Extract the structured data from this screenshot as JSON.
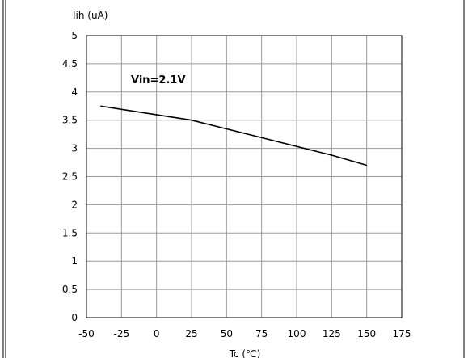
{
  "chart_data": {
    "type": "line",
    "ylabel": "Iih (uA)",
    "xlabel": "Tc (℃)",
    "annotation": "Vin=2.1V",
    "xlim": [
      -50,
      175
    ],
    "ylim": [
      0,
      5
    ],
    "x_ticks": [
      "-50",
      "-25",
      "0",
      "25",
      "50",
      "75",
      "100",
      "125",
      "150",
      "175"
    ],
    "y_ticks": [
      "0",
      "0.5",
      "1",
      "1.5",
      "2",
      "2.5",
      "3",
      "3.5",
      "4",
      "4.5",
      "5"
    ],
    "grid": true,
    "series": [
      {
        "x": [
          -40,
          25,
          125,
          150
        ],
        "y": [
          3.75,
          3.5,
          2.88,
          2.7
        ]
      }
    ]
  }
}
